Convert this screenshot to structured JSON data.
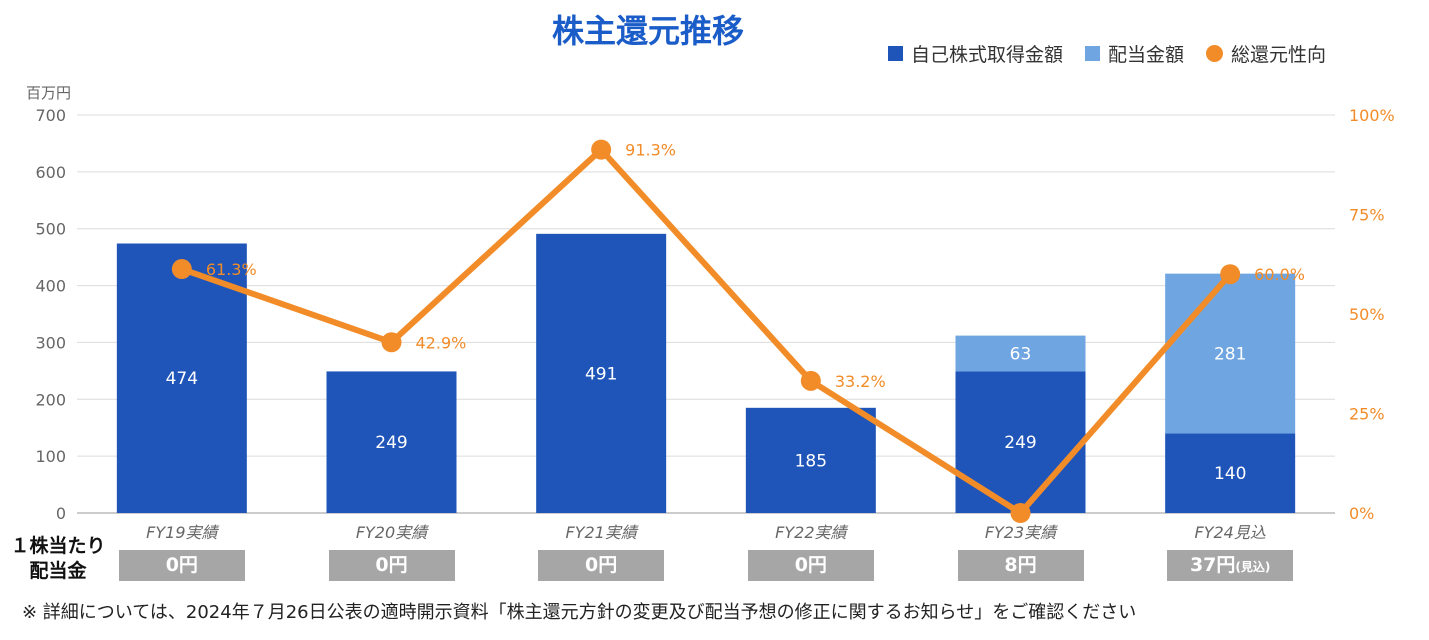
{
  "title": "株主還元推移",
  "legend": [
    {
      "label": "自己株式取得金額",
      "color": "#1f55b8",
      "shape": "square"
    },
    {
      "label": "配当金額",
      "color": "#6fa5e0",
      "shape": "square"
    },
    {
      "label": "総還元性向",
      "color": "#f28c28",
      "shape": "circle"
    }
  ],
  "unit_label": "百万円",
  "chart_data": {
    "type": "bar",
    "stacked": true,
    "categories": [
      "FY19実績",
      "FY20実績",
      "FY21実績",
      "FY22実績",
      "FY23実績",
      "FY24見込"
    ],
    "series": [
      {
        "name": "自己株式取得金額",
        "values": [
          474,
          249,
          491,
          185,
          249,
          140
        ],
        "color": "#1f55b8",
        "labels": [
          "474",
          "249",
          "491",
          "185",
          "249",
          "140"
        ]
      },
      {
        "name": "配当金額",
        "values": [
          0,
          0,
          0,
          0,
          63,
          281
        ],
        "color": "#6fa5e0",
        "labels": [
          "",
          "",
          "",
          "",
          "63",
          "281"
        ]
      }
    ],
    "line_series": {
      "name": "総還元性向",
      "values": [
        61.3,
        42.9,
        91.3,
        33.2,
        0,
        60.0
      ],
      "labels": [
        "61.3%",
        "42.9%",
        "91.3%",
        "33.2%",
        "",
        "60.0%"
      ],
      "color": "#f28c28",
      "axis": "right"
    },
    "ylim": [
      0,
      700
    ],
    "y_ticks": [
      "0",
      "100",
      "200",
      "300",
      "400",
      "500",
      "600",
      "700"
    ],
    "y2lim": [
      0,
      100
    ],
    "y2_ticks": [
      "0%",
      "25%",
      "50%",
      "75%",
      "100%"
    ],
    "grid": true,
    "legend_position": "top-right"
  },
  "dividend": {
    "label_line1": "１株当たり",
    "label_line2": "配当金",
    "values": [
      {
        "value": "0円",
        "note": ""
      },
      {
        "value": "0円",
        "note": ""
      },
      {
        "value": "0円",
        "note": ""
      },
      {
        "value": "0円",
        "note": ""
      },
      {
        "value": "8円",
        "note": ""
      },
      {
        "value": "37円",
        "note": "(見込)"
      }
    ]
  },
  "footnote": "※ 詳細については、2024年７月26日公表の適時開示資料「株主還元方針の変更及び配当予想の修正に関するお知らせ」をご確認ください"
}
